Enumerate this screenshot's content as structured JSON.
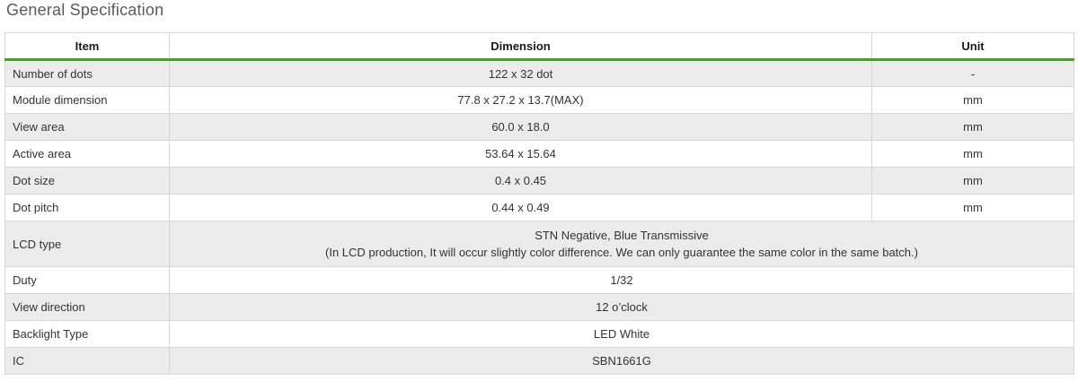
{
  "page": {
    "title": "General Specification"
  },
  "colors": {
    "accent_green": "#3fa31b",
    "alt_row_bg": "#ebebeb",
    "border": "#d6d6d6",
    "title_text": "#5a5a5a",
    "body_text": "#333333"
  },
  "table": {
    "headers": {
      "item": "Item",
      "dimension": "Dimension",
      "unit": "Unit"
    },
    "rows": [
      {
        "item": "Number of dots",
        "dimension": "122 x 32 dot",
        "unit": "-"
      },
      {
        "item": "Module dimension",
        "dimension": "77.8 x 27.2 x 13.7(MAX)",
        "unit": "mm"
      },
      {
        "item": "View area",
        "dimension": "60.0 x 18.0",
        "unit": "mm"
      },
      {
        "item": "Active area",
        "dimension": "53.64 x 15.64",
        "unit": "mm"
      },
      {
        "item": "Dot size",
        "dimension": "0.4 x 0.45",
        "unit": "mm"
      },
      {
        "item": "Dot pitch",
        "dimension": "0.44 x 0.49",
        "unit": "mm"
      },
      {
        "item": "LCD type",
        "dimension_lines": [
          "STN Negative, Blue  Transmissive",
          "(In LCD production, It will occur slightly color difference. We can only guarantee the same color in the same batch.)"
        ]
      },
      {
        "item": "Duty",
        "dimension": "1/32"
      },
      {
        "item": "View direction",
        "dimension": "12 o’clock"
      },
      {
        "item": "Backlight Type",
        "dimension": "LED White"
      },
      {
        "item": "IC",
        "dimension": "SBN1661G"
      }
    ]
  }
}
